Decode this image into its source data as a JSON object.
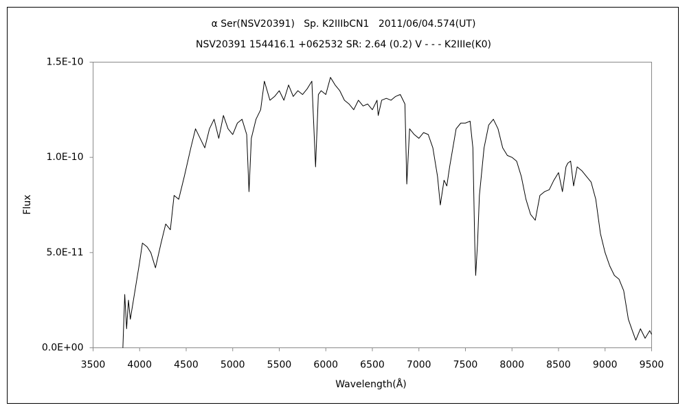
{
  "chart_data": {
    "type": "line",
    "title": "α Ser(NSV20391)   Sp. K2IIIbCN1   2011/06/04.574(UT)",
    "subtitle": "NSV20391 154416.1 +062532 SR: 2.64 (0.2) V - - - K2IIIe(K0)",
    "x_label": "Wavelength(Å)",
    "y_label": "Flux",
    "xlim": [
      3500,
      9500
    ],
    "xticks": [
      3500,
      4000,
      4500,
      5000,
      5500,
      6000,
      6500,
      7000,
      7500,
      8000,
      8500,
      9000,
      9500
    ],
    "ylim": [
      0,
      1.5e-10
    ],
    "yticks": [
      {
        "value": 0,
        "label": "0.0E+00"
      },
      {
        "value": 5e-11,
        "label": "5.0E-11"
      },
      {
        "value": 1e-10,
        "label": "1.0E-10"
      },
      {
        "value": 1.5e-10,
        "label": "1.5E-10"
      }
    ],
    "grid": false,
    "series": [
      {
        "color": "#000000",
        "x": [
          3820,
          3840,
          3860,
          3880,
          3900,
          3950,
          4000,
          4030,
          4080,
          4120,
          4170,
          4230,
          4280,
          4330,
          4370,
          4420,
          4480,
          4550,
          4600,
          4650,
          4700,
          4750,
          4800,
          4850,
          4900,
          4950,
          5000,
          5050,
          5100,
          5150,
          5175,
          5200,
          5250,
          5300,
          5340,
          5400,
          5450,
          5500,
          5550,
          5600,
          5650,
          5700,
          5750,
          5800,
          5850,
          5890,
          5920,
          5950,
          6000,
          6050,
          6100,
          6150,
          6200,
          6250,
          6300,
          6350,
          6400,
          6450,
          6500,
          6550,
          6563,
          6600,
          6650,
          6700,
          6750,
          6800,
          6850,
          6870,
          6900,
          6950,
          7000,
          7050,
          7100,
          7150,
          7200,
          7230,
          7270,
          7300,
          7330,
          7400,
          7450,
          7500,
          7550,
          7580,
          7600,
          7610,
          7630,
          7650,
          7700,
          7750,
          7800,
          7850,
          7900,
          7950,
          8000,
          8050,
          8100,
          8150,
          8200,
          8250,
          8300,
          8350,
          8400,
          8450,
          8500,
          8542,
          8580,
          8600,
          8630,
          8662,
          8700,
          8750,
          8800,
          8850,
          8900,
          8950,
          9000,
          9050,
          9100,
          9150,
          9200,
          9250,
          9300,
          9330,
          9380,
          9430,
          9480,
          9500
        ],
        "values": [
          0,
          2.8e-11,
          1e-11,
          2.5e-11,
          1.5e-11,
          3e-11,
          4.5e-11,
          5.5e-11,
          5.3e-11,
          5e-11,
          4.2e-11,
          5.5e-11,
          6.5e-11,
          6.2e-11,
          8e-11,
          7.8e-11,
          9e-11,
          1.05e-10,
          1.15e-10,
          1.1e-10,
          1.05e-10,
          1.15e-10,
          1.2e-10,
          1.1e-10,
          1.22e-10,
          1.15e-10,
          1.12e-10,
          1.18e-10,
          1.2e-10,
          1.12e-10,
          8.2e-11,
          1.1e-10,
          1.2e-10,
          1.25e-10,
          1.4e-10,
          1.3e-10,
          1.32e-10,
          1.35e-10,
          1.3e-10,
          1.38e-10,
          1.32e-10,
          1.35e-10,
          1.33e-10,
          1.36e-10,
          1.4e-10,
          9.5e-11,
          1.33e-10,
          1.35e-10,
          1.33e-10,
          1.42e-10,
          1.38e-10,
          1.35e-10,
          1.3e-10,
          1.28e-10,
          1.25e-10,
          1.3e-10,
          1.27e-10,
          1.28e-10,
          1.25e-10,
          1.3e-10,
          1.22e-10,
          1.3e-10,
          1.31e-10,
          1.3e-10,
          1.32e-10,
          1.33e-10,
          1.28e-10,
          8.6e-11,
          1.15e-10,
          1.12e-10,
          1.1e-10,
          1.13e-10,
          1.12e-10,
          1.05e-10,
          9e-11,
          7.5e-11,
          8.8e-11,
          8.5e-11,
          9.5e-11,
          1.15e-10,
          1.18e-10,
          1.18e-10,
          1.19e-10,
          1.05e-10,
          5.5e-11,
          3.8e-11,
          5.5e-11,
          8e-11,
          1.05e-10,
          1.17e-10,
          1.2e-10,
          1.15e-10,
          1.05e-10,
          1.01e-10,
          1e-10,
          9.8e-11,
          9e-11,
          7.8e-11,
          7e-11,
          6.7e-11,
          8e-11,
          8.2e-11,
          8.3e-11,
          8.8e-11,
          9.2e-11,
          8.2e-11,
          9.5e-11,
          9.7e-11,
          9.8e-11,
          8.5e-11,
          9.5e-11,
          9.3e-11,
          9e-11,
          8.7e-11,
          7.8e-11,
          6e-11,
          5e-11,
          4.3e-11,
          3.8e-11,
          3.6e-11,
          3e-11,
          1.5e-11,
          8e-12,
          4e-12,
          1e-11,
          5e-12,
          9e-12,
          7e-12
        ]
      }
    ]
  }
}
